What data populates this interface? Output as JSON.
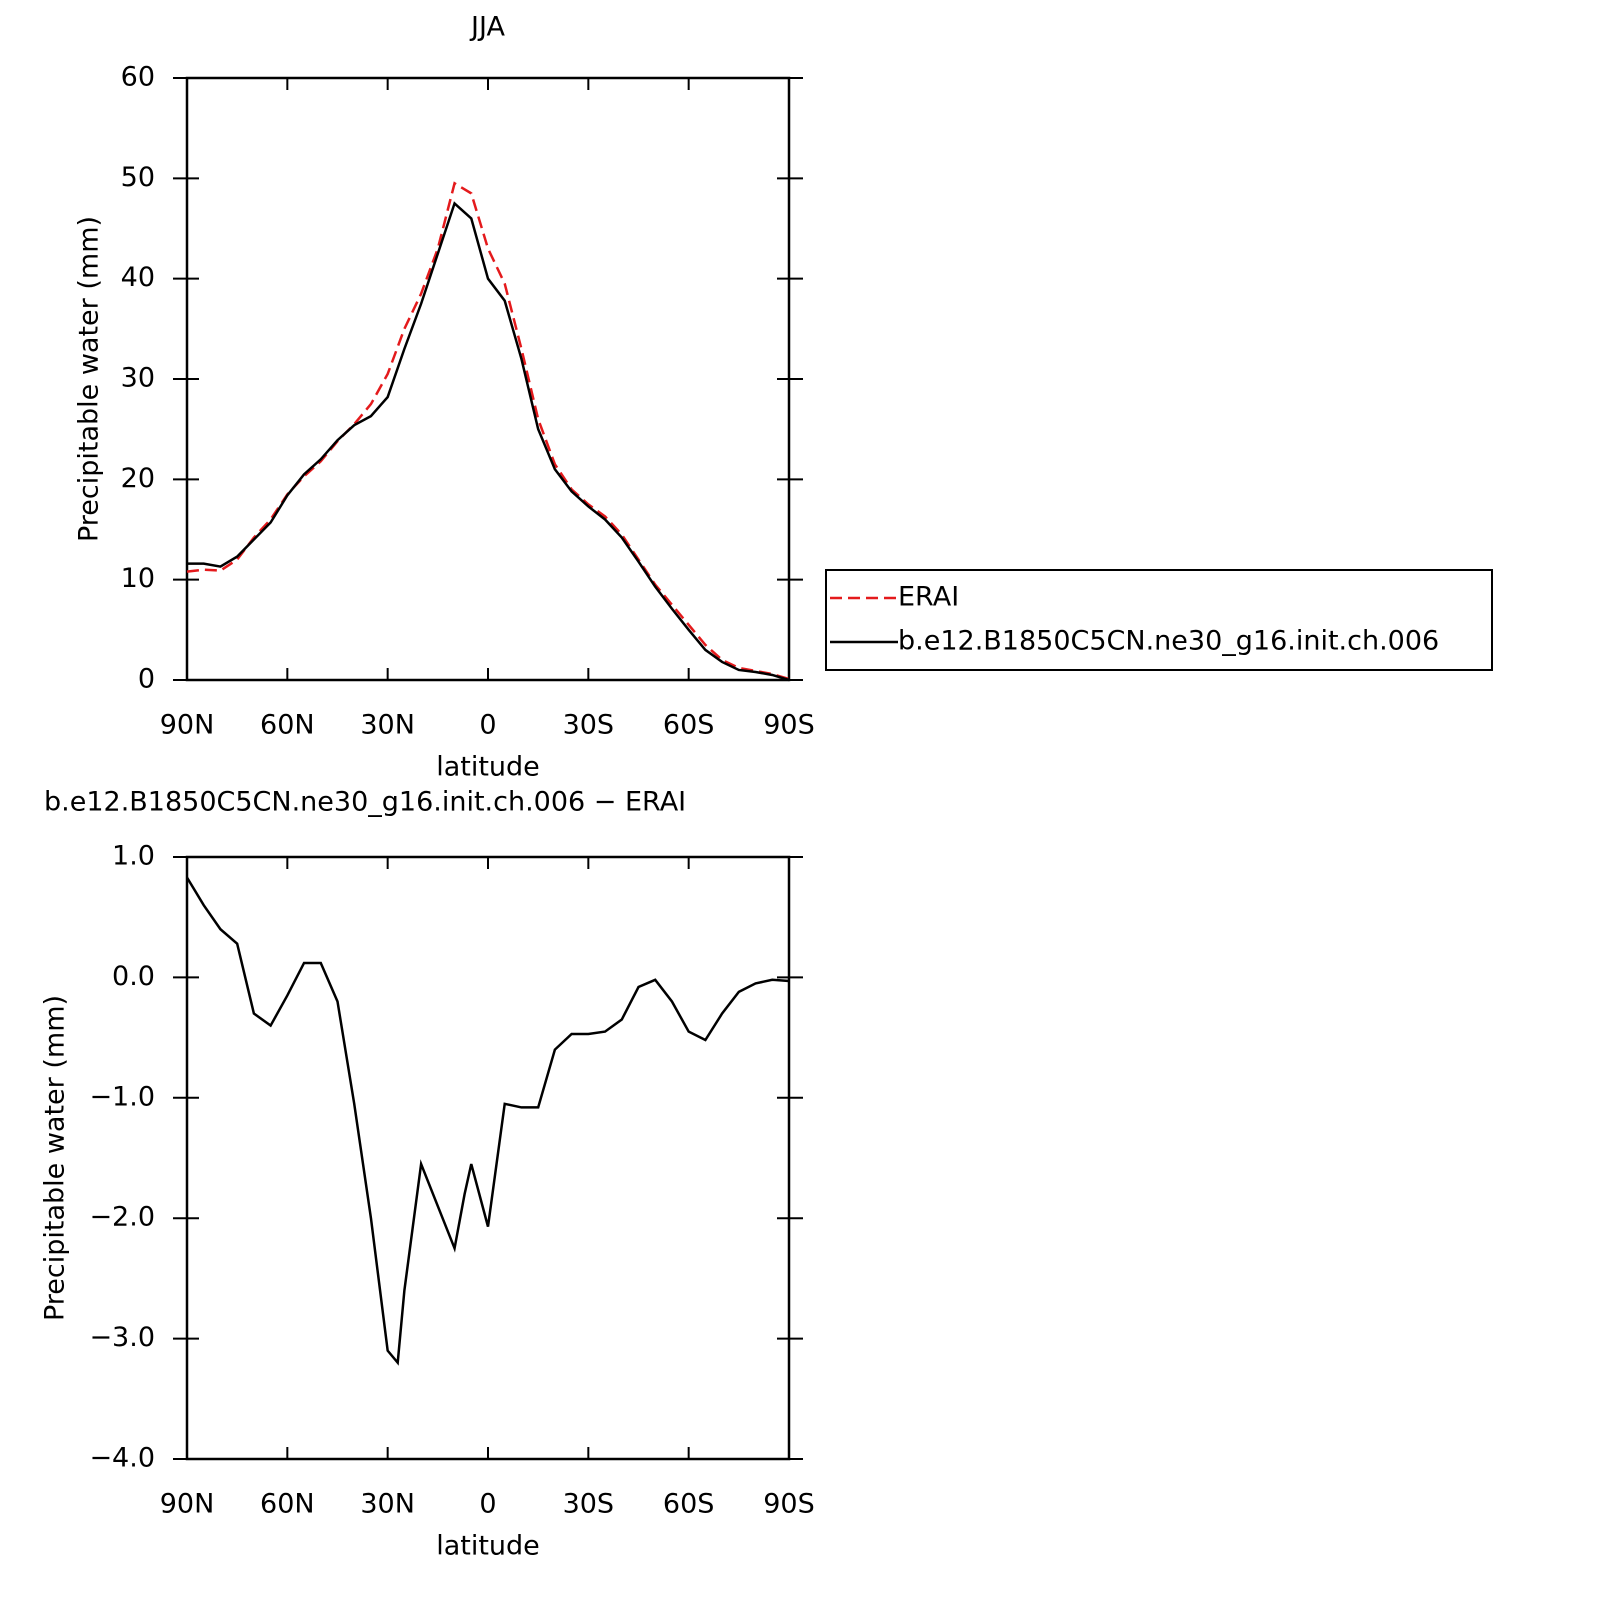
{
  "chart_data": [
    {
      "type": "line",
      "title": "JJA",
      "x_label": "latitude",
      "y_label": "Precipitable water (mm)",
      "x": [
        90,
        85,
        80,
        75,
        70,
        65,
        60,
        55,
        50,
        45,
        40,
        35,
        30,
        25,
        20,
        15,
        10,
        5,
        0,
        -5,
        -10,
        -15,
        -20,
        -25,
        -30,
        -35,
        -40,
        -45,
        -50,
        -55,
        -60,
        -65,
        -70,
        -75,
        -80,
        -85,
        -90
      ],
      "series": [
        {
          "name": "ERAI",
          "color": "#e41a1c",
          "dash": true,
          "values": [
            10.8,
            11.0,
            10.9,
            12.0,
            14.2,
            16.0,
            18.5,
            20.3,
            21.8,
            23.8,
            25.5,
            27.5,
            30.5,
            35,
            38.5,
            43,
            49.5,
            48.5,
            43,
            39.5,
            33,
            26,
            21.5,
            19,
            17.5,
            16.3,
            14.5,
            12,
            9.5,
            7.5,
            5.5,
            3.5,
            2.0,
            1.2,
            0.9,
            0.6,
            0.1
          ]
        },
        {
          "name": "b.e12.B1850C5CN.ne30_g16.init.ch.006",
          "color": "#000000",
          "dash": false,
          "values": [
            11.6,
            11.6,
            11.3,
            12.3,
            14,
            15.7,
            18.4,
            20.5,
            22,
            23.9,
            25.4,
            26.3,
            28.2,
            33,
            37.5,
            42.5,
            47.5,
            46,
            40,
            37.8,
            32,
            25,
            21,
            18.8,
            17.3,
            16,
            14.2,
            11.8,
            9.3,
            7.1,
            5.0,
            3.0,
            1.8,
            1.0,
            0.8,
            0.5,
            0.0
          ]
        }
      ],
      "xlim": [
        90,
        -90
      ],
      "xticks": [
        {
          "value": 90,
          "label": "90N"
        },
        {
          "value": 60,
          "label": "60N"
        },
        {
          "value": 30,
          "label": "30N"
        },
        0,
        {
          "value": -30,
          "label": "30S"
        },
        {
          "value": -60,
          "label": "60S"
        },
        {
          "value": -90,
          "label": "90S"
        }
      ],
      "ylim": [
        0,
        60
      ],
      "yticks": [
        0,
        10,
        20,
        30,
        40,
        50,
        60
      ],
      "legend": "right"
    },
    {
      "type": "line",
      "title": "b.e12.B1850C5CN.ne30_g16.init.ch.006 − ERAI",
      "x_label": "latitude",
      "y_label": "Precipitable water (mm)",
      "x": [
        90,
        85,
        80,
        75,
        70,
        65,
        60,
        55,
        50,
        45,
        40,
        35,
        30,
        27,
        25,
        20,
        15,
        10,
        7,
        5,
        0,
        -5,
        -10,
        -15,
        -20,
        -25,
        -30,
        -35,
        -40,
        -45,
        -50,
        -55,
        -60,
        -65,
        -70,
        -75,
        -80,
        -85,
        -90
      ],
      "series": [
        {
          "color": "#000000",
          "values": [
            0.83,
            0.6,
            0.4,
            0.28,
            -0.3,
            -0.4,
            -0.15,
            0.12,
            0.12,
            -0.2,
            -1.05,
            -2.0,
            -3.1,
            -3.2,
            -2.6,
            -1.55,
            -1.9,
            -2.25,
            -1.8,
            -1.55,
            -2.07,
            -1.05,
            -1.08,
            -1.08,
            -0.6,
            -0.47,
            -0.47,
            -0.45,
            -0.35,
            -0.08,
            -0.02,
            -0.2,
            -0.45,
            -0.52,
            -0.3,
            -0.12,
            -0.05,
            -0.02,
            -0.03
          ]
        }
      ],
      "xlim": [
        90,
        -90
      ],
      "xticks": [
        {
          "value": 90,
          "label": "90N"
        },
        {
          "value": 60,
          "label": "60N"
        },
        {
          "value": 30,
          "label": "30N"
        },
        0,
        {
          "value": -30,
          "label": "30S"
        },
        {
          "value": -60,
          "label": "60S"
        },
        {
          "value": -90,
          "label": "90S"
        }
      ],
      "ylim": [
        -4,
        1
      ],
      "yticks": [
        {
          "value": -4,
          "label": "−4.0"
        },
        {
          "value": -3,
          "label": "−3.0"
        },
        {
          "value": -2,
          "label": "−2.0"
        },
        {
          "value": -1,
          "label": "−1.0"
        },
        {
          "value": 0,
          "label": "0.0"
        },
        {
          "value": 1,
          "label": "1.0"
        }
      ]
    }
  ]
}
